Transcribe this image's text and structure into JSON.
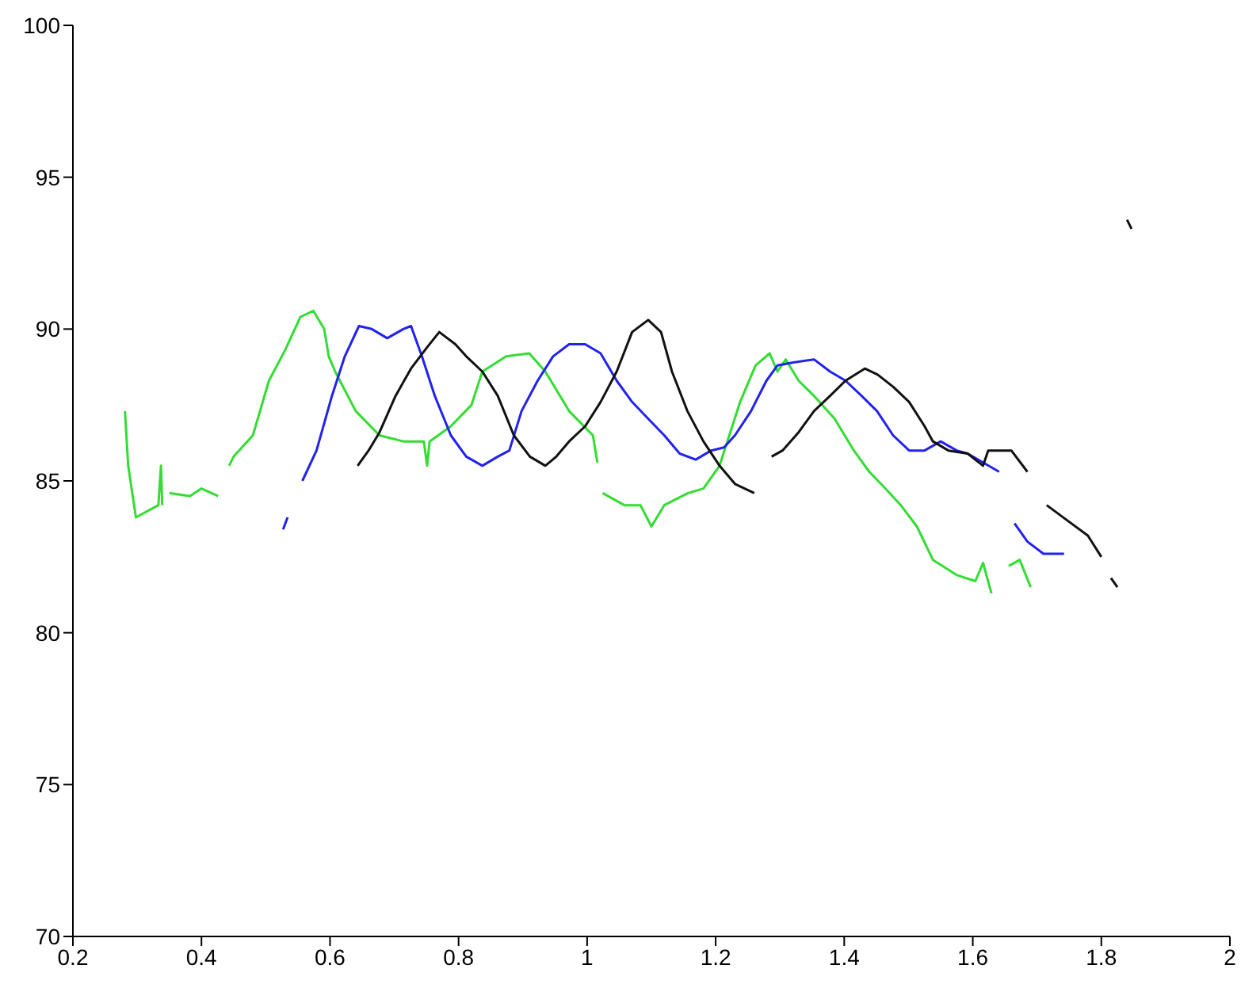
{
  "chart_data": {
    "type": "line",
    "xlim": [
      0.2,
      2
    ],
    "xticks": [
      0.2,
      0.4,
      0.6,
      0.8,
      1,
      1.2,
      1.4,
      1.6,
      1.8,
      2
    ],
    "ylim": [
      70,
      100
    ],
    "yticks": [
      70,
      75,
      80,
      85,
      90,
      95,
      100
    ],
    "grid": false,
    "legend": false,
    "marker": "none",
    "line_style": "solid",
    "series": [
      {
        "color": "#33dd33",
        "x": [
          0.281,
          0.286,
          0.298,
          0.333,
          0.337,
          0.339,
          0.345,
          0.35,
          0.382,
          0.4,
          0.426,
          0.435,
          0.443,
          0.45,
          0.48,
          0.505,
          0.53,
          0.554,
          0.574,
          0.591,
          0.598,
          0.608,
          0.64,
          0.677,
          0.714,
          0.746,
          0.751,
          0.755,
          0.788,
          0.82,
          0.837,
          0.874,
          0.91,
          0.935,
          0.972,
          1.009,
          1.016,
          1.02,
          1.024,
          1.058,
          1.083,
          1.1,
          1.12,
          1.157,
          1.181,
          1.206,
          1.238,
          1.262,
          1.284,
          1.296,
          1.309,
          1.329,
          1.353,
          1.385,
          1.415,
          1.439,
          1.464,
          1.488,
          1.513,
          1.538,
          1.575,
          1.604,
          1.616,
          1.629,
          1.64,
          1.656,
          1.673,
          1.69
        ],
        "values": [
          87.3,
          85.5,
          83.8,
          84.2,
          85.5,
          84.2,
          null,
          84.6,
          84.5,
          84.75,
          84.5,
          null,
          85.5,
          85.8,
          86.5,
          88.3,
          89.3,
          90.4,
          90.6,
          90.0,
          89.1,
          88.6,
          87.3,
          86.5,
          86.3,
          86.3,
          85.5,
          86.3,
          86.8,
          87.5,
          88.6,
          89.1,
          89.2,
          88.6,
          87.3,
          86.5,
          85.6,
          null,
          84.6,
          84.2,
          84.2,
          83.5,
          84.2,
          84.6,
          84.75,
          85.5,
          87.6,
          88.8,
          89.2,
          88.6,
          89.0,
          88.3,
          87.8,
          87.05,
          86.0,
          85.3,
          84.75,
          84.2,
          83.5,
          82.4,
          81.9,
          81.7,
          82.3,
          81.3,
          null,
          82.2,
          82.4,
          81.5
        ]
      },
      {
        "color": "#2222ee",
        "x": [
          0.527,
          0.534,
          0.545,
          0.557,
          0.579,
          0.603,
          0.623,
          0.645,
          0.665,
          0.689,
          0.714,
          0.726,
          0.743,
          0.763,
          0.788,
          0.812,
          0.837,
          0.861,
          0.879,
          0.898,
          0.923,
          0.947,
          0.972,
          0.997,
          1.021,
          1.046,
          1.07,
          1.095,
          1.12,
          1.144,
          1.169,
          1.193,
          1.213,
          1.23,
          1.255,
          1.279,
          1.296,
          1.321,
          1.353,
          1.378,
          1.402,
          1.427,
          1.451,
          1.476,
          1.501,
          1.525,
          1.55,
          1.575,
          1.592,
          1.641,
          1.653,
          1.665,
          1.685,
          1.71,
          1.742
        ],
        "values": [
          83.4,
          83.8,
          null,
          85.0,
          86.0,
          87.8,
          89.1,
          90.1,
          90.0,
          89.7,
          90.0,
          90.1,
          89.1,
          87.8,
          86.5,
          85.8,
          85.5,
          85.8,
          86.0,
          87.3,
          88.3,
          89.1,
          89.5,
          89.5,
          89.2,
          88.3,
          87.6,
          87.05,
          86.5,
          85.9,
          85.7,
          86.0,
          86.1,
          86.5,
          87.3,
          88.3,
          88.8,
          88.9,
          89.0,
          88.6,
          88.3,
          87.8,
          87.3,
          86.5,
          86.0,
          86.0,
          86.3,
          86.0,
          85.9,
          85.3,
          null,
          83.6,
          83.0,
          82.6,
          82.6
        ]
      },
      {
        "color": "#111111",
        "x": [
          0.643,
          0.66,
          0.677,
          0.702,
          0.726,
          0.751,
          0.77,
          0.795,
          0.812,
          0.837,
          0.861,
          0.886,
          0.911,
          0.935,
          0.952,
          0.972,
          0.997,
          1.021,
          1.046,
          1.07,
          1.095,
          1.115,
          1.132,
          1.156,
          1.181,
          1.206,
          1.23,
          1.26,
          1.27,
          1.287,
          1.304,
          1.329,
          1.353,
          1.378,
          1.402,
          1.432,
          1.452,
          1.476,
          1.501,
          1.525,
          1.538,
          1.562,
          1.592,
          1.616,
          1.624,
          1.66,
          1.685,
          1.7,
          1.715,
          1.747,
          1.779,
          1.8,
          1.807,
          1.815,
          1.825,
          1.832,
          1.84,
          1.847
        ],
        "values": [
          85.5,
          86.0,
          86.6,
          87.8,
          88.7,
          89.4,
          89.9,
          89.5,
          89.1,
          88.6,
          87.8,
          86.5,
          85.8,
          85.5,
          85.8,
          86.3,
          86.8,
          87.6,
          88.6,
          89.9,
          90.3,
          89.9,
          88.6,
          87.3,
          86.3,
          85.5,
          84.9,
          84.6,
          null,
          85.8,
          86.0,
          86.6,
          87.3,
          87.8,
          88.3,
          88.7,
          88.5,
          88.1,
          87.6,
          86.8,
          86.3,
          86.0,
          85.9,
          85.5,
          86.0,
          86.0,
          85.3,
          null,
          84.2,
          83.7,
          83.2,
          82.5,
          null,
          81.8,
          81.5,
          null,
          93.6,
          93.3
        ]
      }
    ]
  }
}
